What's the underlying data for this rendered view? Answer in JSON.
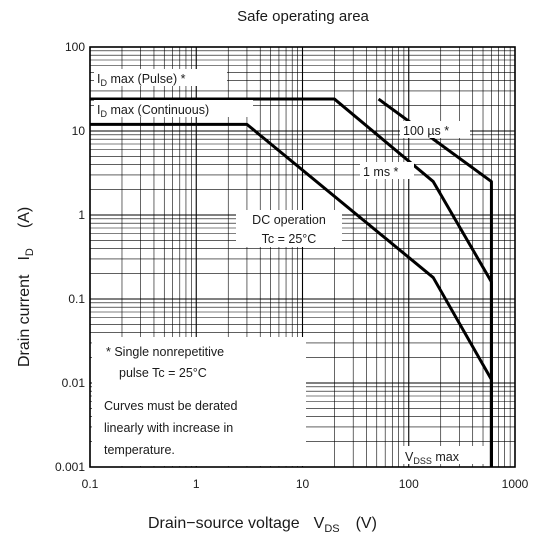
{
  "chart_data": {
    "type": "line",
    "title": "Safe operating area",
    "xlabel": {
      "main": "Drain−source voltage",
      "symbol": "V",
      "sub": "DS",
      "unit": "(V)"
    },
    "ylabel": {
      "main": "Drain current",
      "symbol": "I",
      "sub": "D",
      "unit": "(A)"
    },
    "x_scale": "log",
    "y_scale": "log",
    "xlim": [
      0.1,
      1000
    ],
    "ylim": [
      0.001,
      100
    ],
    "x_ticks": [
      "0.1",
      "1",
      "10",
      "100",
      "1000"
    ],
    "y_ticks": [
      "0.001",
      "0.01",
      "0.1",
      "1",
      "10",
      "100"
    ],
    "grid": true,
    "series": [
      {
        "name": "ID max (Continuous)",
        "points": [
          [
            0.1,
            12
          ],
          [
            3,
            12
          ],
          [
            170,
            0.18
          ],
          [
            600,
            0.011
          ],
          [
            600,
            0.001
          ]
        ]
      },
      {
        "name": "ID max (Pulse) *",
        "points": [
          [
            0.1,
            24
          ],
          [
            20,
            24
          ],
          [
            170,
            2.5
          ],
          [
            600,
            0.16
          ],
          [
            600,
            0.001
          ]
        ]
      },
      {
        "name": "100 µs *",
        "points": [
          [
            52,
            24
          ],
          [
            170,
            8
          ],
          [
            600,
            2.5
          ],
          [
            600,
            0.001
          ]
        ]
      }
    ],
    "annotations": {
      "pulse_max": {
        "pre": "I",
        "sub": "D",
        "post": " max (Pulse) *"
      },
      "cont_max": {
        "pre": "I",
        "sub": "D",
        "post": " max (Continuous)"
      },
      "t100": "100 µs *",
      "t1ms": "1 ms *",
      "dc_line1": "DC operation",
      "dc_line2": "Tc = 25°C",
      "vdss": {
        "pre": "V",
        "sub": "DSS",
        "post": " max"
      }
    },
    "notes": {
      "line1": "*  Single nonrepetitive",
      "line2": "pulse    Tc = 25°C",
      "line3": "Curves must be derated",
      "line4": "linearly with increase in",
      "line5": "temperature."
    }
  }
}
